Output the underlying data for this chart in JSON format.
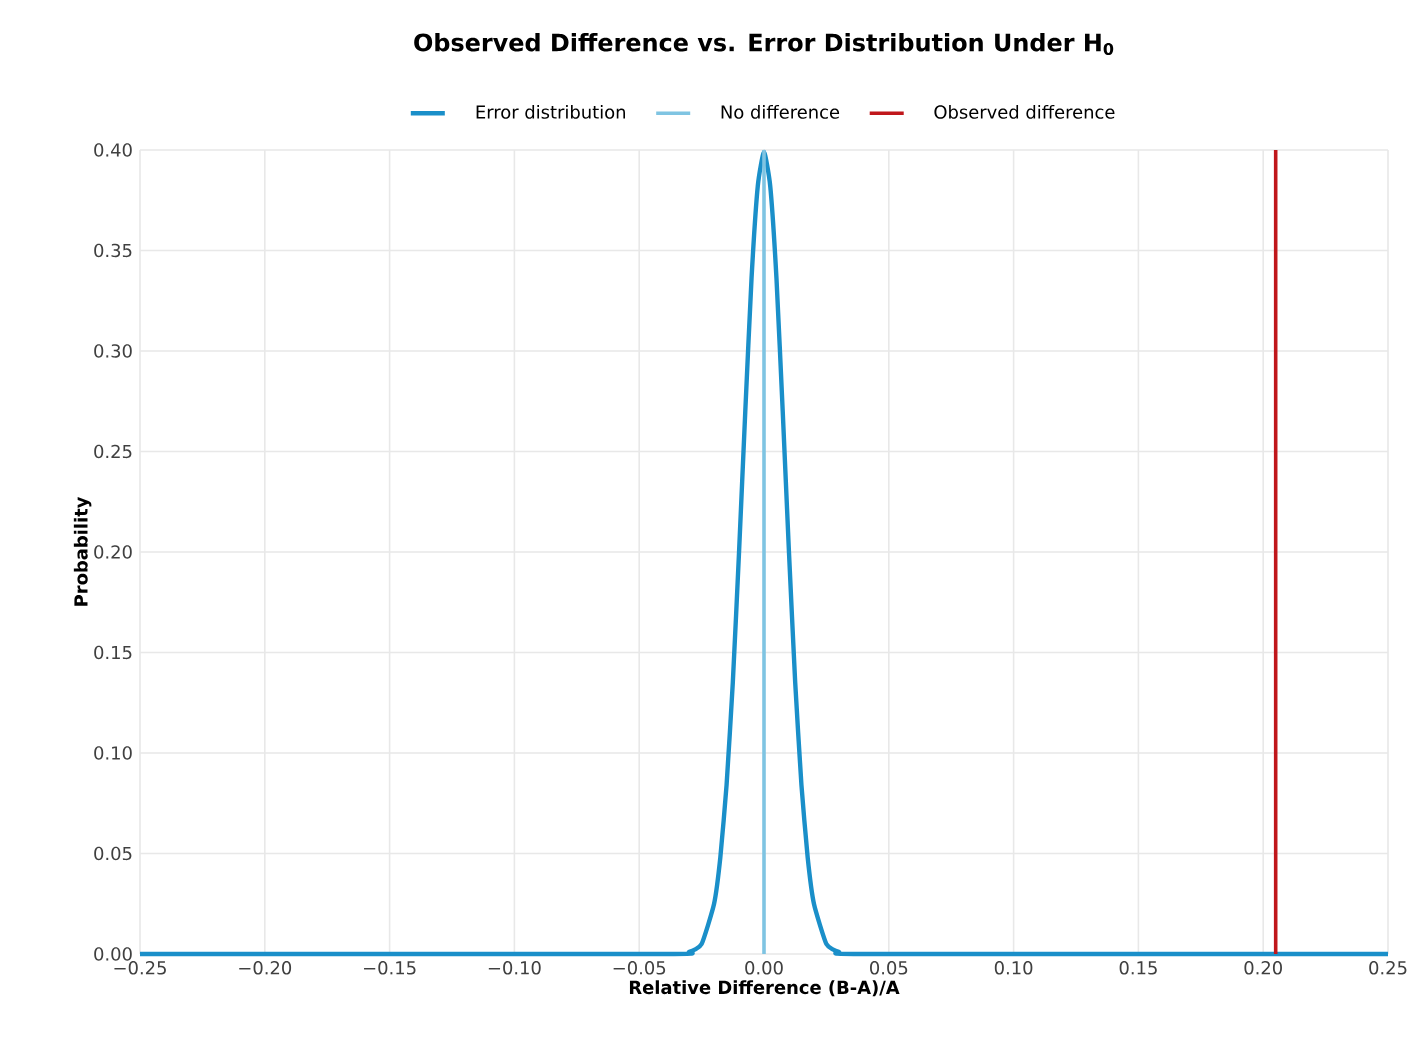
{
  "chart_data": {
    "type": "line",
    "title": "Observed Difference vs. Error Distribution Under H$_{0}$",
    "xlabel": "Relative Difference (B-A)/A",
    "ylabel": "Probability",
    "series": [
      {
        "name": "Error distribution",
        "color": "#1a8fc9",
        "x": [
          -0.25,
          -0.04,
          -0.03,
          -0.025,
          -0.02,
          -0.0175,
          -0.015,
          -0.0125,
          -0.01,
          -0.0075,
          -0.005,
          -0.0025,
          0,
          0.0025,
          0.005,
          0.0075,
          0.01,
          0.0125,
          0.015,
          0.0175,
          0.02,
          0.025,
          0.03,
          0.04,
          0.25
        ],
        "values": [
          0,
          0,
          0.001,
          0.005,
          0.025,
          0.048,
          0.084,
          0.135,
          0.2,
          0.27,
          0.336,
          0.382,
          0.399,
          0.382,
          0.336,
          0.27,
          0.2,
          0.135,
          0.084,
          0.048,
          0.025,
          0.005,
          0.001,
          0,
          0
        ]
      }
    ],
    "ref_lines": [
      {
        "axis": "x",
        "value": 0,
        "label": "No difference",
        "color": "#7fc4e2"
      },
      {
        "axis": "x",
        "value": 0.205,
        "label": "Observed difference",
        "color": "#c0171b"
      }
    ],
    "xlim": [
      -0.25,
      0.25
    ],
    "xticks": [
      {
        "value": -0.25,
        "label": "−0.25"
      },
      {
        "value": -0.2,
        "label": "−0.20"
      },
      {
        "value": -0.15,
        "label": "−0.15"
      },
      {
        "value": -0.1,
        "label": "−0.10"
      },
      {
        "value": -0.05,
        "label": "−0.05"
      },
      {
        "value": 0,
        "label": "0.00"
      },
      {
        "value": 0.05,
        "label": "0.05"
      },
      {
        "value": 0.1,
        "label": "0.10"
      },
      {
        "value": 0.15,
        "label": "0.15"
      },
      {
        "value": 0.2,
        "label": "0.20"
      },
      {
        "value": 0.25,
        "label": "0.25"
      }
    ],
    "ylim": [
      0,
      0.4
    ],
    "yticks": [
      {
        "value": 0,
        "label": "0.00"
      },
      {
        "value": 0.05,
        "label": "0.05"
      },
      {
        "value": 0.1,
        "label": "0.10"
      },
      {
        "value": 0.15,
        "label": "0.15"
      },
      {
        "value": 0.2,
        "label": "0.20"
      },
      {
        "value": 0.25,
        "label": "0.25"
      },
      {
        "value": 0.3,
        "label": "0.30"
      },
      {
        "value": 0.35,
        "label": "0.35"
      },
      {
        "value": 0.4,
        "label": "0.40"
      }
    ],
    "grid": true,
    "legend": "top"
  }
}
